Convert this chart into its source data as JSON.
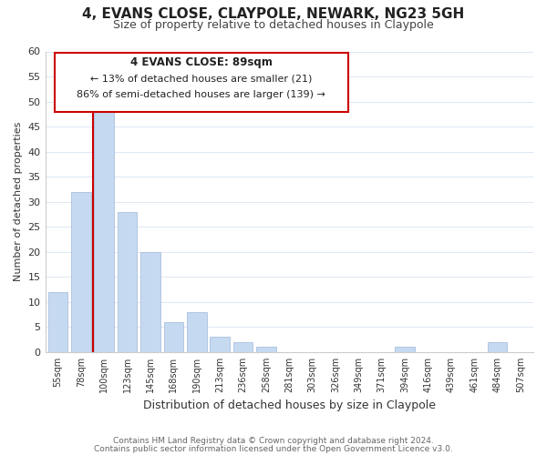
{
  "title": "4, EVANS CLOSE, CLAYPOLE, NEWARK, NG23 5GH",
  "subtitle": "Size of property relative to detached houses in Claypole",
  "xlabel": "Distribution of detached houses by size in Claypole",
  "ylabel": "Number of detached properties",
  "bar_labels": [
    "55sqm",
    "78sqm",
    "100sqm",
    "123sqm",
    "145sqm",
    "168sqm",
    "190sqm",
    "213sqm",
    "236sqm",
    "258sqm",
    "281sqm",
    "303sqm",
    "326sqm",
    "349sqm",
    "371sqm",
    "394sqm",
    "416sqm",
    "439sqm",
    "461sqm",
    "484sqm",
    "507sqm"
  ],
  "bar_values": [
    12,
    32,
    48,
    28,
    20,
    6,
    8,
    3,
    2,
    1,
    0,
    0,
    0,
    0,
    0,
    1,
    0,
    0,
    0,
    2,
    0
  ],
  "bar_color": "#c5d9f1",
  "bar_edge_color": "#a0b8d8",
  "highlight_line_color": "#cc0000",
  "ylim": [
    0,
    60
  ],
  "yticks": [
    0,
    5,
    10,
    15,
    20,
    25,
    30,
    35,
    40,
    45,
    50,
    55,
    60
  ],
  "annotation_title": "4 EVANS CLOSE: 89sqm",
  "annotation_line1": "← 13% of detached houses are smaller (21)",
  "annotation_line2": "86% of semi-detached houses are larger (139) →",
  "annotation_box_color": "#ffffff",
  "annotation_box_edge": "#cc0000",
  "footer_line1": "Contains HM Land Registry data © Crown copyright and database right 2024.",
  "footer_line2": "Contains public sector information licensed under the Open Government Licence v3.0.",
  "background_color": "#ffffff",
  "grid_color": "#dce8f5"
}
